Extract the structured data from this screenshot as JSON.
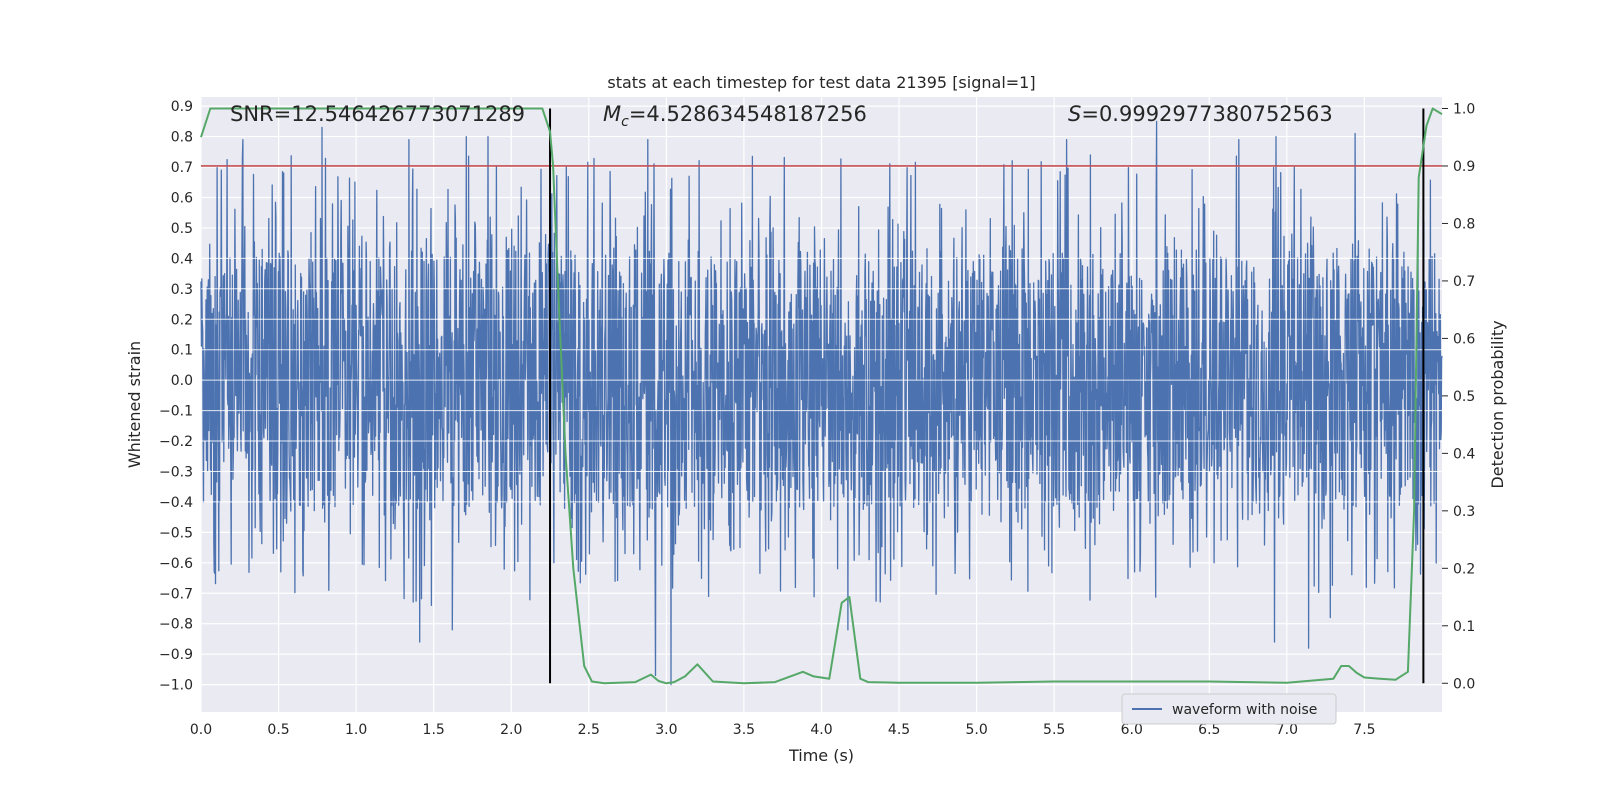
{
  "chart_data": {
    "type": "line",
    "title": "stats at each timestep for test data 21395 [signal=1]",
    "xlabel": "Time (s)",
    "ylabel": "Whitened strain",
    "y2label": "Detection probability",
    "xlim": [
      0.0,
      8.0
    ],
    "ylim": [
      -1.09,
      0.93
    ],
    "y2lim": [
      -0.05,
      1.02
    ],
    "xticks": [
      "0.0",
      "0.5",
      "1.0",
      "1.5",
      "2.0",
      "2.5",
      "3.0",
      "3.5",
      "4.0",
      "4.5",
      "5.0",
      "5.5",
      "6.0",
      "6.5",
      "7.0",
      "7.5"
    ],
    "yticks": [
      "0.9",
      "0.8",
      "0.7",
      "0.6",
      "0.5",
      "0.4",
      "0.3",
      "0.2",
      "0.1",
      "0.0",
      "−0.1",
      "−0.2",
      "−0.3",
      "−0.4",
      "−0.5",
      "−0.6",
      "−0.7",
      "−0.8",
      "−0.9",
      "−1.0"
    ],
    "y2ticks": [
      "1.0",
      "0.9",
      "0.8",
      "0.7",
      "0.6",
      "0.5",
      "0.4",
      "0.3",
      "0.2",
      "0.1",
      "0.0"
    ],
    "annotations": {
      "snr": "SNR=12.546426773071289",
      "mc_symbol": "M",
      "mc_sub": "c",
      "mc_value": "=4.528634548187256",
      "s_symbol": "S",
      "s_value": "=0.9992977380752563"
    },
    "threshold": 0.9,
    "vlines": [
      2.25,
      7.88
    ],
    "series": [
      {
        "name": "waveform with noise",
        "axis": "left",
        "color": "#4c72b0",
        "core_amplitude": 0.42,
        "peaks": [
          {
            "x": 0.27,
            "y": 0.79
          },
          {
            "x": 0.78,
            "y": 0.83
          },
          {
            "x": 1.34,
            "y": 0.79
          },
          {
            "x": 1.71,
            "y": 0.8
          },
          {
            "x": 1.85,
            "y": 0.8
          },
          {
            "x": 2.88,
            "y": 0.79
          },
          {
            "x": 5.58,
            "y": 0.79
          },
          {
            "x": 6.16,
            "y": 0.85
          },
          {
            "x": 6.69,
            "y": 0.79
          },
          {
            "x": 6.93,
            "y": 0.8
          },
          {
            "x": 7.44,
            "y": 0.81
          },
          {
            "x": 1.41,
            "y": -0.86
          },
          {
            "x": 1.62,
            "y": -0.82
          },
          {
            "x": 2.93,
            "y": -0.97
          },
          {
            "x": 3.03,
            "y": -1.0
          },
          {
            "x": 4.17,
            "y": -0.82
          },
          {
            "x": 6.92,
            "y": -0.86
          },
          {
            "x": 7.14,
            "y": -0.88
          },
          {
            "x": 7.28,
            "y": -0.78
          }
        ]
      },
      {
        "name": "detection probability",
        "axis": "right",
        "color": "#55a868",
        "x": [
          0.0,
          0.06,
          0.5,
          1.0,
          1.5,
          2.0,
          2.2,
          2.25,
          2.27,
          2.3,
          2.35,
          2.4,
          2.47,
          2.52,
          2.6,
          2.8,
          2.9,
          2.95,
          3.0,
          3.05,
          3.12,
          3.2,
          3.3,
          3.5,
          3.7,
          3.88,
          3.95,
          4.05,
          4.13,
          4.18,
          4.25,
          4.3,
          4.5,
          5.0,
          5.5,
          6.0,
          6.5,
          7.0,
          7.3,
          7.35,
          7.4,
          7.45,
          7.5,
          7.6,
          7.7,
          7.78,
          7.82,
          7.85,
          7.9,
          7.94,
          8.0
        ],
        "y": [
          0.95,
          1.0,
          1.0,
          1.0,
          1.0,
          1.0,
          1.0,
          0.96,
          0.9,
          0.7,
          0.4,
          0.2,
          0.03,
          0.003,
          0.0,
          0.002,
          0.015,
          0.004,
          0.0,
          0.002,
          0.012,
          0.033,
          0.003,
          0.0,
          0.002,
          0.02,
          0.012,
          0.008,
          0.14,
          0.15,
          0.008,
          0.002,
          0.001,
          0.001,
          0.003,
          0.003,
          0.003,
          0.001,
          0.008,
          0.03,
          0.03,
          0.018,
          0.01,
          0.008,
          0.006,
          0.02,
          0.3,
          0.88,
          0.97,
          1.0,
          0.99
        ]
      }
    ],
    "legend": {
      "label": "waveform with noise",
      "location": "lower-right"
    }
  }
}
